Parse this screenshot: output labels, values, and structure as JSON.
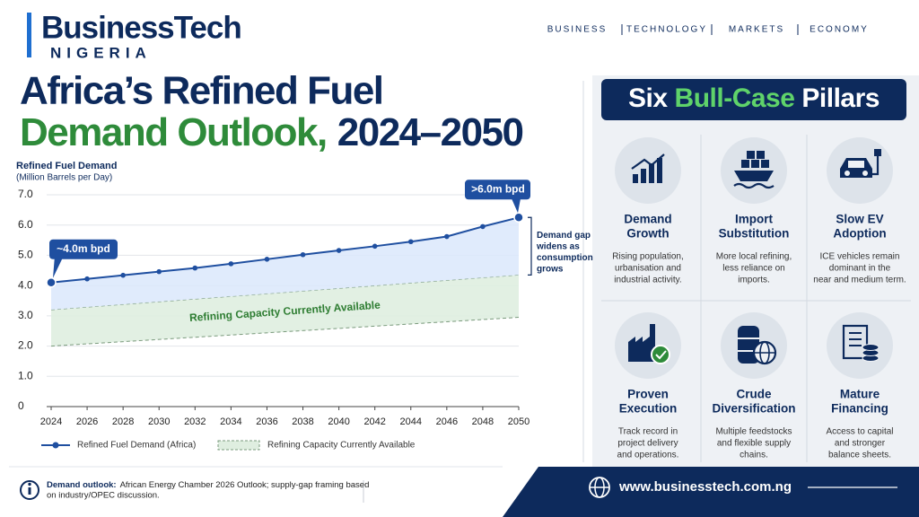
{
  "header": {
    "logo": "BusinessTech",
    "logo_sub": "NIGERIA",
    "nav": [
      "BUSINESS",
      "TECHNOLOGY",
      "MARKETS",
      "ECONOMY"
    ],
    "title_line1": "Africa’s Refined Fuel",
    "title_line2_green": "Demand Outlook,",
    "title_line2_rest": "2024–2050"
  },
  "chart_data": {
    "type": "line",
    "y_label_line1": "Refined Fuel Demand",
    "y_label_line2": "(Million Barrels per Day)",
    "x": [
      2024,
      2026,
      2028,
      2030,
      2032,
      2034,
      2036,
      2038,
      2040,
      2042,
      2044,
      2046,
      2048,
      2050
    ],
    "series": [
      {
        "name": "Refined Fuel Demand (Africa)",
        "color": "#1f4fa0",
        "values": [
          4.1,
          4.22,
          4.34,
          4.46,
          4.58,
          4.72,
          4.87,
          5.02,
          5.16,
          5.3,
          5.45,
          5.62,
          5.95,
          6.25
        ]
      }
    ],
    "band": {
      "name": "Refining Capacity Currently Available",
      "color": "#2e8b3a",
      "x": [
        2024,
        2050
      ],
      "upper": [
        3.2,
        4.35
      ],
      "lower": [
        2.0,
        2.95
      ]
    },
    "xlim": [
      2024,
      2050
    ],
    "xticks": [
      2024,
      2026,
      2028,
      2030,
      2032,
      2034,
      2036,
      2038,
      2040,
      2042,
      2044,
      2046,
      2048,
      2050
    ],
    "ylim": [
      0,
      7
    ],
    "yticks": [
      0,
      {
        "value": 1,
        "label": "1.0"
      },
      {
        "value": 2,
        "label": "2.0"
      },
      {
        "value": 3,
        "label": "3.0"
      },
      {
        "value": 4,
        "label": "4.0"
      },
      {
        "value": 5,
        "label": "5.0"
      },
      {
        "value": 6,
        "label": "6.0"
      },
      {
        "value": 7,
        "label": "7.0"
      }
    ],
    "grid": true,
    "annotations": {
      "start": "~4.0m bpd",
      "end": ">6.0m bpd",
      "gap": [
        "Demand gap",
        "widens as",
        "consumption",
        "grows"
      ]
    }
  },
  "pillars": {
    "title_start": "Six",
    "title_green": "Bull-Case",
    "title_end": "Pillars",
    "items": [
      {
        "title": [
          "Demand",
          "Growth"
        ],
        "text": [
          "Rising population,",
          "urbanisation and",
          "industrial activity."
        ]
      },
      {
        "title": [
          "Import",
          "Substitution"
        ],
        "text": [
          "More local refining,",
          "less reliance on",
          "imports."
        ]
      },
      {
        "title": [
          "Slow EV",
          "Adoption"
        ],
        "text": [
          "ICE vehicles remain",
          "dominant in the",
          "near and medium term."
        ]
      },
      {
        "title": [
          "Proven",
          "Execution"
        ],
        "text": [
          "Track record in",
          "project delivery",
          "and operations."
        ]
      },
      {
        "title": [
          "Crude",
          "Diversification"
        ],
        "text": [
          "Multiple feedstocks",
          "and flexible supply",
          "chains."
        ]
      },
      {
        "title": [
          "Mature",
          "Financing"
        ],
        "text": [
          "Access to capital",
          "and stronger",
          "balance sheets."
        ]
      }
    ]
  },
  "footer": {
    "label": "Demand outlook:",
    "line1": "African Energy Chamber 2026 Outlook; supply-gap framing based",
    "line2": "on industry/OPEC discussion.",
    "url": "www.businesstech.com.ng"
  }
}
